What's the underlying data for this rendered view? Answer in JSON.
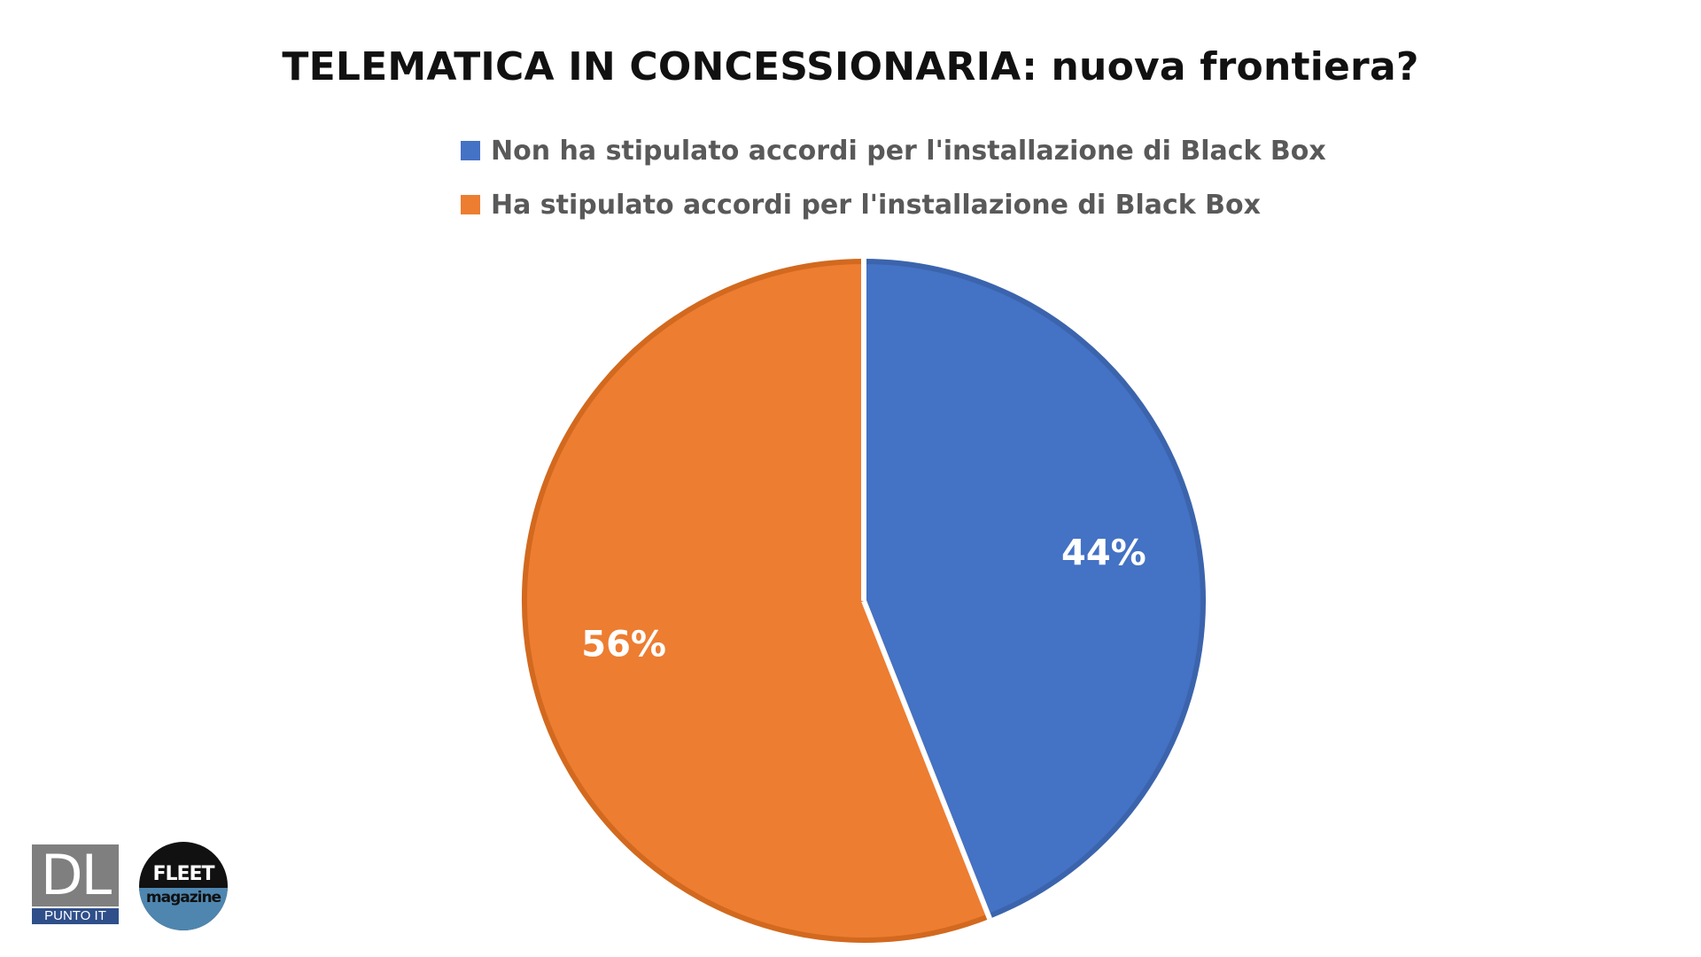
{
  "chart_data": {
    "type": "pie",
    "title": "TELEMATICA IN CONCESSIONARIA: nuova frontiera?",
    "legend_position": "top",
    "categories": [
      "Non ha stipulato accordi per l'installazione di Black Box",
      "Ha stipulato accordi per l'installazione di Black Box"
    ],
    "values": [
      44,
      56
    ],
    "data_labels": [
      "44%",
      "56%"
    ],
    "colors": [
      "#4472c4",
      "#ed7d31"
    ]
  },
  "logos": {
    "dl": {
      "letters": "DL",
      "subtitle": "PUNTO IT"
    },
    "fleet": {
      "top": "FLEET",
      "bottom": "magazine"
    }
  }
}
